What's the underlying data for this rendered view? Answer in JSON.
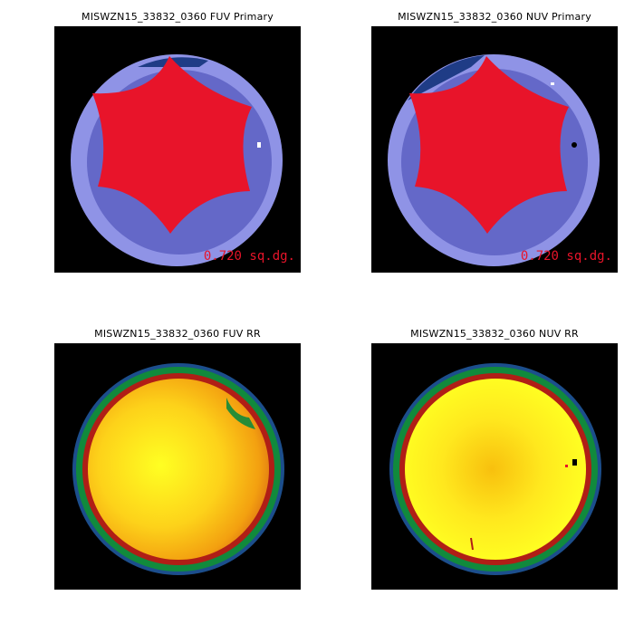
{
  "panels": {
    "fuv_primary": {
      "title": "MISWZN15_33832_0360 FUV Primary",
      "area_label": "0.720 sq.dg."
    },
    "nuv_primary": {
      "title": "MISWZN15_33832_0360 NUV Primary",
      "area_label": "0.720 sq.dg."
    },
    "fuv_rr": {
      "title": "MISWZN15_33832_0360 FUV RR"
    },
    "nuv_rr": {
      "title": "MISWZN15_33832_0360 NUV RR"
    }
  },
  "colors": {
    "background": "#000000",
    "primary_region": "#e8142a",
    "coverage_inner": "#6468c8",
    "coverage_outer": "#8f93e6",
    "coverage_dark": "#1f3c86",
    "rr_center": "#ffff1e",
    "rr_mid": "#f7a10a",
    "rr_rim_red": "#b01e16",
    "rr_rim_green": "#118a3c",
    "rr_rim_blue": "#1c4e8c"
  }
}
